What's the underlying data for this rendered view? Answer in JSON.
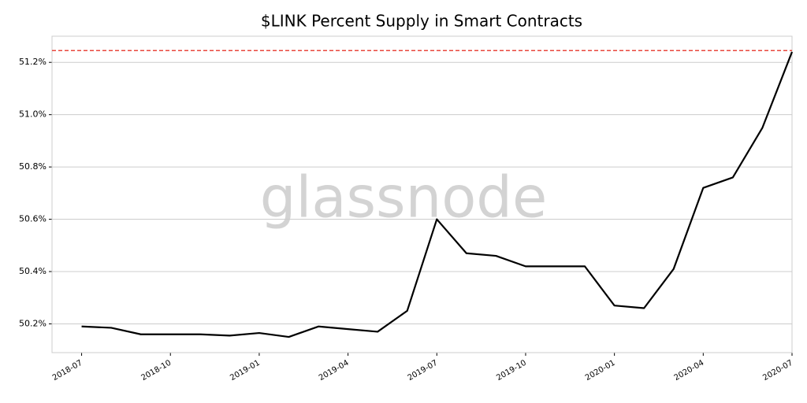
{
  "chart_data": {
    "type": "line",
    "title": "$LINK Percent Supply in Smart Contracts",
    "watermark": "glassnode",
    "x": [
      "2018-07",
      "2018-08",
      "2018-09",
      "2018-10",
      "2018-11",
      "2018-12",
      "2019-01",
      "2019-02",
      "2019-03",
      "2019-04",
      "2019-05",
      "2019-06",
      "2019-07",
      "2019-08",
      "2019-09",
      "2019-10",
      "2019-11",
      "2019-12",
      "2020-01",
      "2020-02",
      "2020-03",
      "2020-04",
      "2020-05",
      "2020-06",
      "2020-07"
    ],
    "series": [
      {
        "color": "#000000",
        "values": [
          50.19,
          50.185,
          50.16,
          50.16,
          50.16,
          50.155,
          50.165,
          50.15,
          50.19,
          50.18,
          50.17,
          50.25,
          50.6,
          50.47,
          50.46,
          50.42,
          50.42,
          50.42,
          50.27,
          50.26,
          50.41,
          50.72,
          50.76,
          50.95,
          51.24
        ]
      }
    ],
    "hline": {
      "value": 51.245,
      "color": "#e8473c"
    },
    "xlim": [
      "2018-06",
      "2020-07"
    ],
    "xticks": [
      "2018-07",
      "2018-10",
      "2019-01",
      "2019-04",
      "2019-07",
      "2019-10",
      "2020-01",
      "2020-04",
      "2020-07"
    ],
    "ylim": [
      50.09,
      51.3
    ],
    "yticks": [
      {
        "value": 50.2,
        "label": "50.2%"
      },
      {
        "value": 50.4,
        "label": "50.4%"
      },
      {
        "value": 50.6,
        "label": "50.6%"
      },
      {
        "value": 50.8,
        "label": "50.8%"
      },
      {
        "value": 51.0,
        "label": "51.0%"
      },
      {
        "value": 51.2,
        "label": "51.2%"
      }
    ],
    "grid": true
  }
}
